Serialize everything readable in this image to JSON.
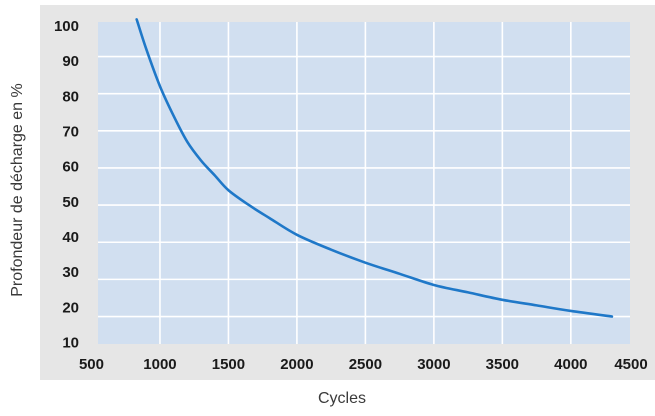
{
  "chart_data": {
    "type": "line",
    "title": "",
    "xlabel": "Cycles",
    "ylabel": "Profondeur de décharge en %",
    "xlim": [
      500,
      4500
    ],
    "ylim": [
      10,
      100
    ],
    "x_ticks": [
      "500",
      "1000",
      "1500",
      "2000",
      "2500",
      "3000",
      "3500",
      "4000",
      "4500"
    ],
    "y_ticks": [
      "10",
      "20",
      "30",
      "40",
      "50",
      "60",
      "70",
      "80",
      "90",
      "100"
    ],
    "grid": true,
    "colors": {
      "frame": "#e6e6e6",
      "plot_bg": "#d1dff0",
      "grid": "#ffffff",
      "line": "#1f78c8"
    },
    "series": [
      {
        "x": [
          830,
          900,
          1000,
          1100,
          1200,
          1300,
          1400,
          1500,
          1650,
          1800,
          2000,
          2250,
          2500,
          2750,
          3000,
          3250,
          3500,
          3750,
          4000,
          4300
        ],
        "values": [
          100,
          92,
          82,
          74,
          67,
          62,
          58,
          54,
          50,
          46.5,
          42,
          38,
          34.5,
          31.5,
          28.5,
          26.5,
          24.5,
          23,
          21.5,
          20
        ]
      }
    ]
  }
}
